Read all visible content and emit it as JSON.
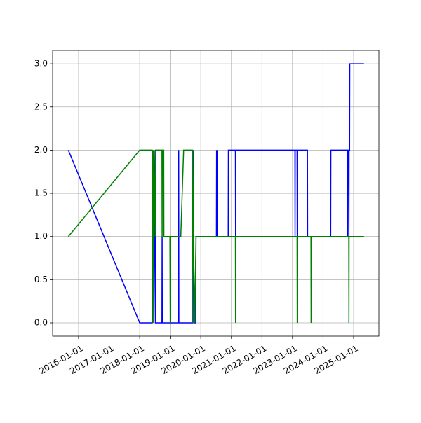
{
  "chart_data": {
    "type": "line",
    "xlim": [
      "2015-02-25",
      "2025-10-30"
    ],
    "xticks": [
      "2016-01-01",
      "2017-01-01",
      "2018-01-01",
      "2019-01-01",
      "2020-01-01",
      "2021-01-01",
      "2022-01-01",
      "2023-01-01",
      "2024-01-01",
      "2025-01-01"
    ],
    "ylim": [
      -0.154,
      3.155
    ],
    "yticks": [
      {
        "value": 0,
        "label": "0.0"
      },
      {
        "value": 0.5,
        "label": "0.5"
      },
      {
        "value": 1,
        "label": "1.0"
      },
      {
        "value": 1.5,
        "label": "1.5"
      },
      {
        "value": 2,
        "label": "2.0"
      },
      {
        "value": 2.5,
        "label": "2.5"
      },
      {
        "value": 3,
        "label": "3.0"
      }
    ],
    "grid": true,
    "series": [
      {
        "color": "#0000ff",
        "x": [
          "2015-09-01",
          "2018-01-01",
          "2018-05-30",
          "2018-06-01",
          "2018-06-04",
          "2018-06-08",
          "2018-06-12",
          "2018-06-16",
          "2018-06-20",
          "2018-07-05",
          "2018-07-09",
          "2018-09-24",
          "2018-09-26",
          "2018-09-28",
          "2019-04-10",
          "2019-04-12",
          "2019-04-14",
          "2019-09-24",
          "2019-09-26",
          "2019-09-28",
          "2019-10-05",
          "2019-10-10",
          "2019-11-01",
          "2019-11-05",
          "2020-07-06",
          "2020-07-08",
          "2020-07-10",
          "2020-07-14",
          "2020-07-18",
          "2020-11-24",
          "2020-11-26",
          "2021-02-18",
          "2021-02-20",
          "2021-02-22",
          "2023-01-30",
          "2023-02-01",
          "2023-02-03",
          "2023-02-25",
          "2023-02-27",
          "2023-03-01",
          "2023-06-29",
          "2023-07-01",
          "2024-04-02",
          "2024-04-04",
          "2024-10-20",
          "2024-10-22",
          "2024-10-24",
          "2024-11-04",
          "2024-11-06",
          "2024-11-08",
          "2024-11-14",
          "2024-11-16",
          "2025-05-05"
        ],
        "values": [
          2,
          0,
          0,
          2,
          0,
          2,
          1,
          2,
          0,
          2,
          0,
          0,
          1,
          0,
          0,
          2,
          0,
          0,
          2,
          1,
          2,
          0,
          0,
          1,
          1,
          2,
          1,
          2,
          1,
          1,
          2,
          2,
          1,
          2,
          2,
          1,
          2,
          2,
          1,
          2,
          2,
          1,
          1,
          2,
          2,
          1,
          2,
          2,
          1,
          2,
          2,
          3,
          3
        ]
      },
      {
        "color": "#008000",
        "x": [
          "2015-09-01",
          "2018-01-01",
          "2018-05-30",
          "2018-06-01",
          "2018-06-04",
          "2018-06-08",
          "2018-06-12",
          "2018-06-16",
          "2018-06-20",
          "2018-07-05",
          "2018-07-09",
          "2018-09-24",
          "2018-09-26",
          "2018-09-28",
          "2018-10-15",
          "2018-10-17",
          "2018-12-28",
          "2019-01-01",
          "2019-01-05",
          "2019-05-07",
          "2019-06-10",
          "2019-09-24",
          "2019-09-26",
          "2019-09-28",
          "2019-10-05",
          "2019-10-20",
          "2019-11-05",
          "2021-02-18",
          "2021-02-20",
          "2021-02-22",
          "2023-02-25",
          "2023-02-27",
          "2023-03-01",
          "2023-08-10",
          "2023-08-12",
          "2023-08-14",
          "2024-11-04",
          "2024-11-06",
          "2024-11-08",
          "2025-05-05"
        ],
        "values": [
          1,
          2,
          2,
          0,
          2,
          1,
          2,
          0,
          2,
          1,
          2,
          2,
          1,
          2,
          2,
          1,
          1,
          0,
          1,
          1,
          2,
          2,
          0,
          2,
          1,
          0,
          1,
          1,
          0,
          1,
          1,
          0,
          1,
          1,
          0,
          1,
          1,
          0,
          1,
          1
        ]
      }
    ]
  }
}
